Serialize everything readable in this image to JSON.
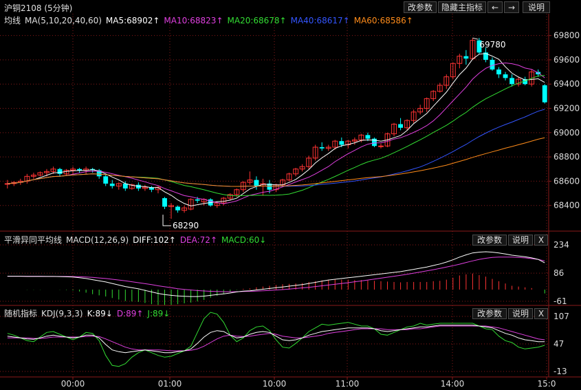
{
  "header": {
    "title": "沪铜2108 (5分钟)",
    "buttons": [
      "改参数",
      "隐藏主指标",
      "←",
      "→",
      "说明"
    ]
  },
  "main_panel": {
    "legend": [
      {
        "text": "均线",
        "color": "#e0e0e0"
      },
      {
        "text": "MA(5,10,20,40,60)",
        "color": "#e0e0e0"
      },
      {
        "text": "MA5:68902↑",
        "color": "#ffffff"
      },
      {
        "text": "MA10:68823↑",
        "color": "#e040e0"
      },
      {
        "text": "MA20:68678↑",
        "color": "#33dd33"
      },
      {
        "text": "MA40:68617↑",
        "color": "#3355ff"
      },
      {
        "text": "MA60:68586↑",
        "color": "#ff8c1a"
      }
    ],
    "high_label": "69780",
    "low_label": "68290",
    "y_ticks": [
      "69800",
      "69600",
      "69400",
      "69200",
      "69000",
      "68800",
      "68600",
      "68400"
    ]
  },
  "macd_panel": {
    "legend": [
      {
        "text": "平滑异同平均线",
        "color": "#e0e0e0"
      },
      {
        "text": "MACD(12,26,9)",
        "color": "#e0e0e0"
      },
      {
        "text": "DIFF:102↑",
        "color": "#ffffff"
      },
      {
        "text": "DEA:72↑",
        "color": "#e040e0"
      },
      {
        "text": "MACD:60↓",
        "color": "#33dd33"
      }
    ],
    "buttons": [
      "改参数",
      "说明",
      "X"
    ],
    "y_ticks": [
      "234",
      "86",
      "-61"
    ]
  },
  "kdj_panel": {
    "legend": [
      {
        "text": "随机指标",
        "color": "#e0e0e0"
      },
      {
        "text": "KDJ(9,3,3)",
        "color": "#e0e0e0"
      },
      {
        "text": "K:89↓",
        "color": "#ffffff"
      },
      {
        "text": "D:89↑",
        "color": "#e040e0"
      },
      {
        "text": "J:89↓",
        "color": "#33dd33"
      }
    ],
    "buttons": [
      "改参数",
      "说明",
      "X"
    ],
    "y_ticks": [
      "107",
      "47",
      "-13"
    ]
  },
  "x_axis": {
    "ticks": [
      "00:00",
      "01:00",
      "10:00",
      "11:00",
      "14:00",
      "15:0"
    ]
  },
  "colors": {
    "up": "#ff3333",
    "down": "#00ffff",
    "grid": "#8b1a1a",
    "axis": "#8b1a1a"
  },
  "chart_data": {
    "type": "candlestick",
    "price_range": [
      68200,
      69900
    ],
    "candles": [
      [
        68580,
        68610,
        68540,
        68580
      ],
      [
        68580,
        68600,
        68560,
        68590
      ],
      [
        68590,
        68620,
        68570,
        68600
      ],
      [
        68600,
        68660,
        68580,
        68640
      ],
      [
        68640,
        68670,
        68620,
        68650
      ],
      [
        68650,
        68680,
        68640,
        68670
      ],
      [
        68670,
        68700,
        68640,
        68680
      ],
      [
        68680,
        68720,
        68660,
        68700
      ],
      [
        68700,
        68710,
        68640,
        68660
      ],
      [
        68660,
        68700,
        68650,
        68690
      ],
      [
        68690,
        68720,
        68650,
        68700
      ],
      [
        68700,
        68710,
        68670,
        68690
      ],
      [
        68690,
        68720,
        68660,
        68700
      ],
      [
        68700,
        68710,
        68670,
        68690
      ],
      [
        68690,
        68700,
        68620,
        68640
      ],
      [
        68640,
        68650,
        68560,
        68580
      ],
      [
        68580,
        68610,
        68540,
        68560
      ],
      [
        68560,
        68590,
        68530,
        68580
      ],
      [
        68580,
        68600,
        68520,
        68540
      ],
      [
        68540,
        68580,
        68530,
        68570
      ],
      [
        68570,
        68590,
        68520,
        68540
      ],
      [
        68540,
        68570,
        68520,
        68550
      ],
      [
        68550,
        68560,
        68510,
        68530
      ],
      [
        68530,
        68560,
        68500,
        68550
      ],
      [
        68460,
        68470,
        68370,
        68390
      ],
      [
        68390,
        68420,
        68290,
        68400
      ],
      [
        68390,
        68400,
        68340,
        68360
      ],
      [
        68360,
        68400,
        68340,
        68380
      ],
      [
        68370,
        68460,
        68360,
        68450
      ],
      [
        68450,
        68470,
        68420,
        68440
      ],
      [
        68430,
        68460,
        68400,
        68450
      ],
      [
        68450,
        68460,
        68390,
        68400
      ],
      [
        68400,
        68430,
        68380,
        68420
      ],
      [
        68420,
        68470,
        68400,
        68460
      ],
      [
        68460,
        68500,
        68440,
        68490
      ],
      [
        68490,
        68540,
        68470,
        68530
      ],
      [
        68530,
        68600,
        68510,
        68590
      ],
      [
        68590,
        68680,
        68570,
        68610
      ],
      [
        68610,
        68640,
        68530,
        68560
      ],
      [
        68560,
        68620,
        68480,
        68580
      ],
      [
        68580,
        68610,
        68500,
        68530
      ],
      [
        68530,
        68580,
        68510,
        68570
      ],
      [
        68570,
        68620,
        68550,
        68610
      ],
      [
        68610,
        68670,
        68600,
        68660
      ],
      [
        68660,
        68710,
        68640,
        68700
      ],
      [
        68700,
        68740,
        68680,
        68720
      ],
      [
        68720,
        68810,
        68700,
        68790
      ],
      [
        68790,
        68900,
        68770,
        68880
      ],
      [
        68880,
        68920,
        68850,
        68870
      ],
      [
        68870,
        68900,
        68850,
        68880
      ],
      [
        68880,
        68940,
        68860,
        68930
      ],
      [
        68930,
        68960,
        68880,
        68900
      ],
      [
        68900,
        68940,
        68870,
        68930
      ],
      [
        68930,
        68960,
        68900,
        68940
      ],
      [
        68940,
        68990,
        68920,
        68980
      ],
      [
        68980,
        69000,
        68930,
        68950
      ],
      [
        68950,
        68960,
        68880,
        68890
      ],
      [
        68890,
        68910,
        68870,
        68890
      ],
      [
        68890,
        69000,
        68880,
        68990
      ],
      [
        68990,
        69080,
        68970,
        69070
      ],
      [
        69070,
        69120,
        69020,
        69040
      ],
      [
        69040,
        69110,
        69020,
        69100
      ],
      [
        69100,
        69190,
        69080,
        69170
      ],
      [
        69170,
        69230,
        69150,
        69200
      ],
      [
        69200,
        69290,
        69170,
        69280
      ],
      [
        69280,
        69350,
        69260,
        69340
      ],
      [
        69340,
        69410,
        69330,
        69390
      ],
      [
        69390,
        69480,
        69360,
        69460
      ],
      [
        69460,
        69580,
        69440,
        69570
      ],
      [
        69570,
        69650,
        69530,
        69630
      ],
      [
        69630,
        69680,
        69560,
        69610
      ],
      [
        69610,
        69780,
        69600,
        69760
      ],
      [
        69760,
        69780,
        69650,
        69660
      ],
      [
        69660,
        69700,
        69580,
        69600
      ],
      [
        69600,
        69620,
        69510,
        69520
      ],
      [
        69520,
        69540,
        69450,
        69480
      ],
      [
        69480,
        69500,
        69430,
        69450
      ],
      [
        69450,
        69480,
        69380,
        69400
      ],
      [
        69400,
        69460,
        69380,
        69440
      ],
      [
        69440,
        69460,
        69390,
        69400
      ],
      [
        69400,
        69520,
        69380,
        69500
      ],
      [
        69500,
        69520,
        69460,
        69480
      ],
      [
        69390,
        69400,
        69240,
        69250
      ]
    ],
    "ma_series": [
      {
        "name": "MA5",
        "color": "#ffffff",
        "period": 5
      },
      {
        "name": "MA10",
        "color": "#e040e0",
        "period": 10
      },
      {
        "name": "MA20",
        "color": "#33dd33",
        "period": 20
      },
      {
        "name": "MA40",
        "color": "#3355ff",
        "period": 40
      },
      {
        "name": "MA60",
        "color": "#ff8c1a",
        "period": 60
      }
    ],
    "macd": {
      "range": [
        -61,
        234
      ],
      "diff": [
        70,
        70,
        70,
        69,
        69,
        69,
        69,
        69,
        68,
        67,
        66,
        62,
        58,
        52,
        46,
        40,
        32,
        24,
        16,
        10,
        4,
        -4,
        -12,
        -20,
        -26,
        -30,
        -33,
        -35,
        -36,
        -36,
        -34,
        -30,
        -26,
        -22,
        -18,
        -12,
        -8,
        -6,
        -2,
        2,
        6,
        10,
        14,
        18,
        22,
        26,
        32,
        38,
        44,
        50,
        54,
        58,
        62,
        66,
        70,
        74,
        78,
        82,
        86,
        90,
        94,
        100,
        106,
        112,
        118,
        126,
        134,
        144,
        156,
        170,
        182,
        192,
        196,
        198,
        196,
        192,
        186,
        180,
        176,
        172,
        166,
        158,
        140
      ],
      "dea": [
        70,
        70,
        70,
        70,
        70,
        70,
        69,
        69,
        69,
        69,
        68,
        67,
        66,
        64,
        61,
        58,
        54,
        50,
        46,
        41,
        36,
        31,
        26,
        20,
        15,
        10,
        5,
        1,
        -2,
        -5,
        -7,
        -9,
        -10,
        -11,
        -11,
        -11,
        -10,
        -9,
        -8,
        -6,
        -4,
        -2,
        0,
        3,
        6,
        9,
        12,
        16,
        20,
        24,
        28,
        32,
        36,
        41,
        45,
        50,
        55,
        60,
        65,
        70,
        75,
        80,
        86,
        92,
        98,
        104,
        111,
        118,
        125,
        133,
        142,
        150,
        158,
        164,
        168,
        170,
        170,
        170,
        168,
        166,
        162,
        158,
        150
      ],
      "hist": [
        0,
        0,
        0,
        -1,
        -1,
        -1,
        0,
        0,
        -1,
        -2,
        -4,
        -10,
        -16,
        -24,
        -30,
        -36,
        -44,
        -52,
        -60,
        -62,
        -64,
        -70,
        -76,
        -80,
        -80,
        -80,
        -76,
        -72,
        -68,
        -62,
        -54,
        -42,
        -32,
        -22,
        -14,
        -2,
        4,
        6,
        12,
        16,
        20,
        24,
        28,
        30,
        32,
        34,
        40,
        44,
        48,
        52,
        52,
        52,
        52,
        50,
        50,
        48,
        46,
        44,
        42,
        40,
        38,
        40,
        40,
        40,
        40,
        44,
        46,
        52,
        62,
        74,
        80,
        84,
        76,
        68,
        56,
        44,
        32,
        20,
        16,
        12,
        8,
        0,
        -20
      ]
    },
    "kdj": {
      "range": [
        -13,
        107
      ],
      "k": [
        64,
        62,
        60,
        58,
        57,
        60,
        64,
        66,
        64,
        62,
        60,
        62,
        66,
        66,
        60,
        46,
        34,
        30,
        28,
        30,
        32,
        34,
        32,
        30,
        28,
        28,
        30,
        32,
        36,
        48,
        62,
        72,
        76,
        74,
        66,
        60,
        62,
        68,
        72,
        74,
        72,
        64,
        56,
        54,
        56,
        60,
        66,
        70,
        74,
        76,
        78,
        80,
        82,
        82,
        82,
        82,
        80,
        76,
        74,
        76,
        78,
        80,
        82,
        84,
        84,
        86,
        88,
        88,
        88,
        88,
        88,
        88,
        86,
        84,
        82,
        76,
        70,
        66,
        60,
        56,
        54,
        52,
        52
      ],
      "d": [
        60,
        60,
        60,
        60,
        59,
        59,
        60,
        62,
        62,
        62,
        62,
        62,
        63,
        64,
        63,
        58,
        52,
        46,
        40,
        36,
        34,
        34,
        34,
        34,
        33,
        32,
        32,
        32,
        33,
        36,
        42,
        50,
        58,
        64,
        66,
        64,
        63,
        64,
        66,
        68,
        70,
        68,
        64,
        62,
        60,
        60,
        62,
        64,
        66,
        70,
        72,
        74,
        76,
        78,
        80,
        80,
        80,
        80,
        78,
        78,
        78,
        78,
        80,
        80,
        82,
        84,
        86,
        86,
        86,
        86,
        86,
        86,
        86,
        86,
        84,
        82,
        78,
        74,
        70,
        66,
        62,
        58,
        56
      ],
      "j": [
        70,
        66,
        60,
        54,
        52,
        62,
        72,
        74,
        68,
        62,
        56,
        62,
        72,
        70,
        54,
        22,
        0,
        -2,
        4,
        18,
        28,
        34,
        28,
        22,
        18,
        20,
        26,
        32,
        42,
        72,
        102,
        116,
        112,
        94,
        66,
        52,
        60,
        76,
        84,
        86,
        76,
        56,
        40,
        38,
        48,
        60,
        74,
        82,
        90,
        88,
        90,
        92,
        94,
        90,
        86,
        86,
        80,
        68,
        66,
        72,
        78,
        84,
        86,
        92,
        88,
        90,
        92,
        92,
        92,
        92,
        92,
        92,
        86,
        80,
        78,
        64,
        54,
        50,
        40,
        36,
        38,
        40,
        44
      ]
    }
  }
}
